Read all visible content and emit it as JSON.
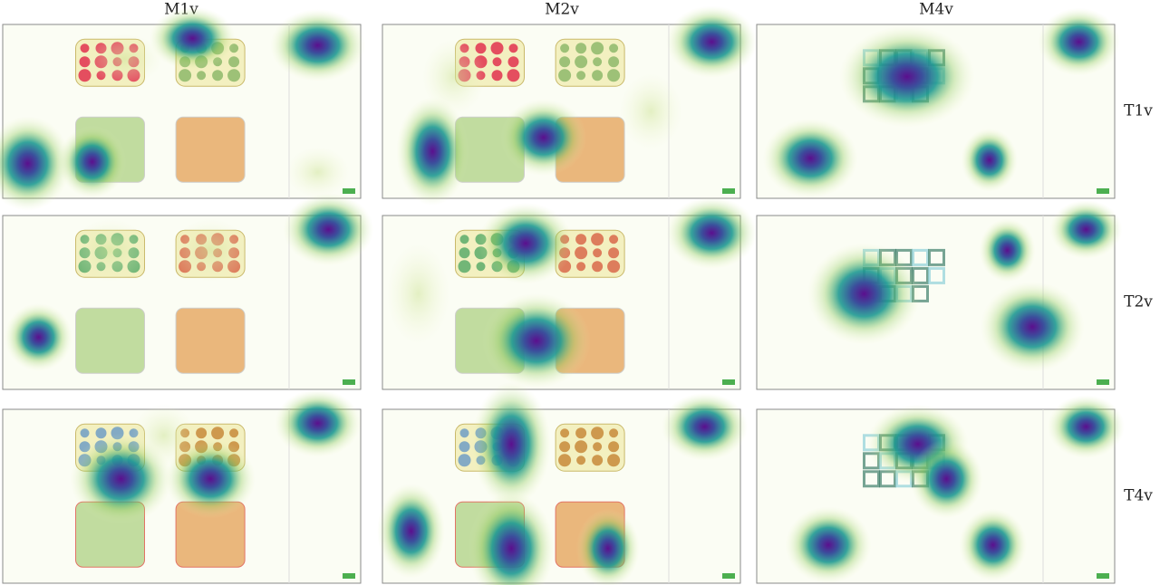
{
  "columns": [
    "M1v",
    "M2v",
    "M4v"
  ],
  "rows": [
    "T1v",
    "T2v",
    "T4v"
  ]
}
